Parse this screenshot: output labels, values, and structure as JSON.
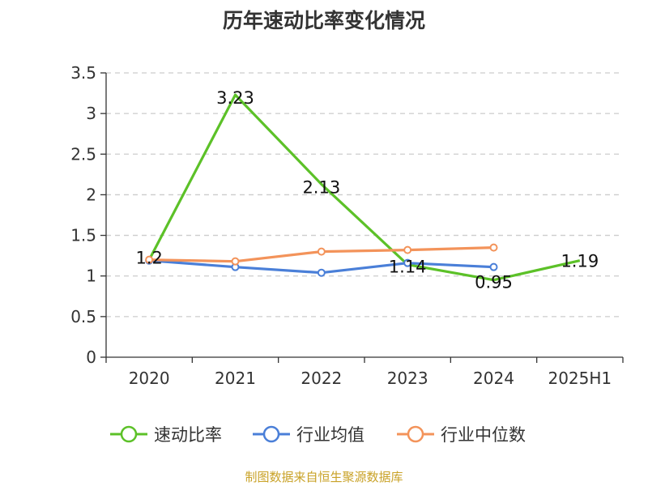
{
  "title": "历年速动比率变化情况",
  "source_note": "制图数据来自恒生聚源数据库",
  "colors": {
    "series_quick_ratio": "#5cc128",
    "series_industry_mean": "#4a7fd8",
    "series_industry_median": "#f3935a",
    "grid": "#cccccc",
    "axis": "#333333",
    "text": "#333333",
    "source": "#c9a227"
  },
  "chart_data": {
    "type": "line",
    "title": "历年速动比率变化情况",
    "categories": [
      "2020",
      "2021",
      "2022",
      "2023",
      "2024",
      "2025H1"
    ],
    "ylim": [
      0,
      3.5
    ],
    "yticks": [
      "0",
      "0.5",
      "1",
      "1.5",
      "2",
      "2.5",
      "3",
      "3.5"
    ],
    "grid": true,
    "legend_position": "bottom",
    "series": [
      {
        "name": "速动比率",
        "values": [
          1.2,
          3.23,
          2.13,
          1.14,
          0.95,
          1.19
        ],
        "labels": [
          "1.2",
          "3.23",
          "2.13",
          "1.14",
          "0.95",
          "1.19"
        ]
      },
      {
        "name": "行业均值",
        "values": [
          1.19,
          1.11,
          1.04,
          1.16,
          1.11,
          null
        ]
      },
      {
        "name": "行业中位数",
        "values": [
          1.2,
          1.18,
          1.3,
          1.32,
          1.35,
          null
        ]
      }
    ]
  }
}
